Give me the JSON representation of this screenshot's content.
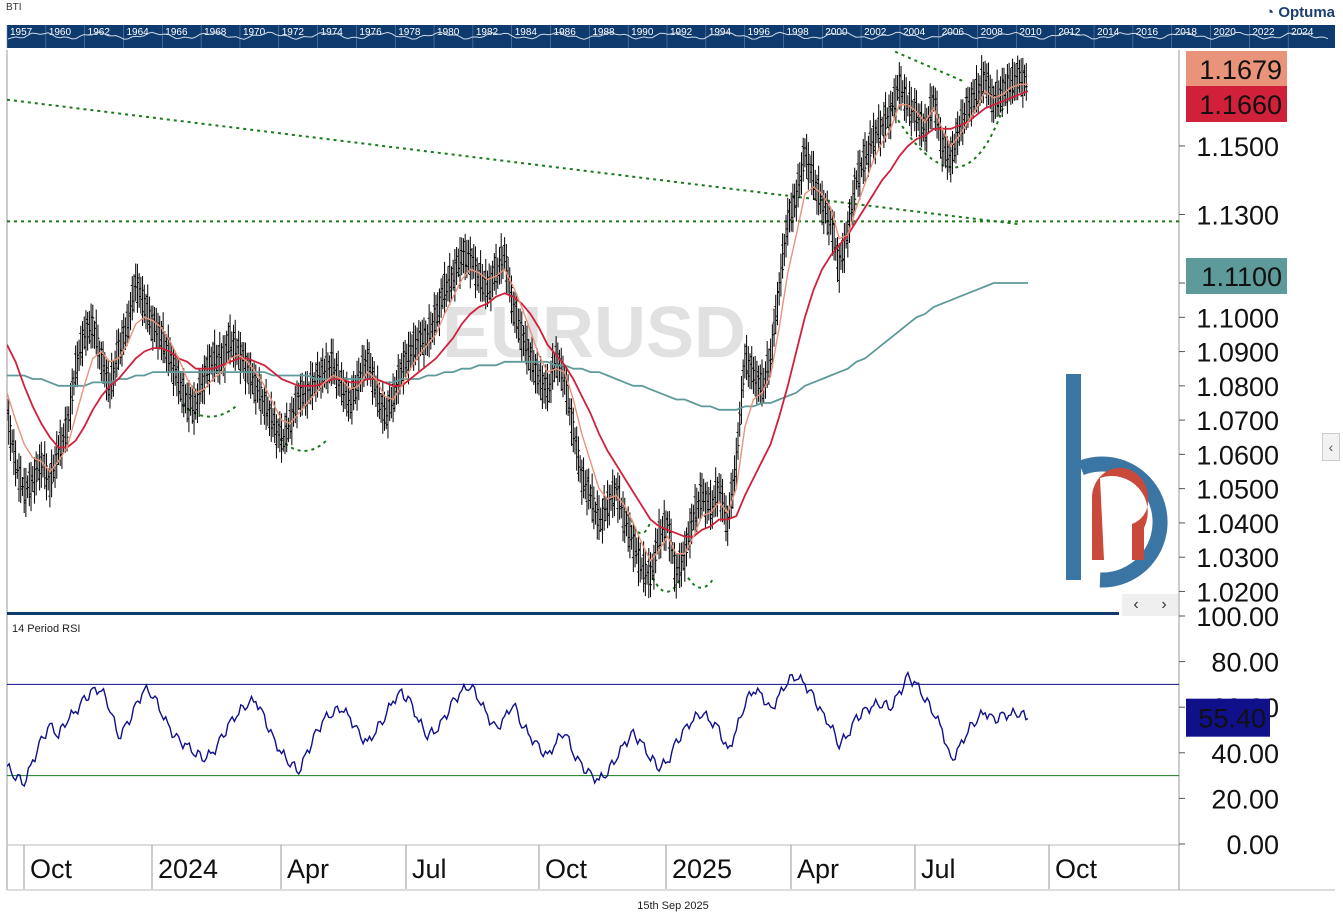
{
  "ticker_label": "BTI",
  "brand": "Optuma",
  "watermark": "EURUSD",
  "date_footer": "15th Sep 2025",
  "rsi_title": "14 Period RSI",
  "nav": {
    "prev": "‹",
    "next": "›"
  },
  "side_toggle": "‹",
  "colors": {
    "price": "#000000",
    "ma_fast": "#e8937a",
    "ma_mid": "#d0203a",
    "ma_slow": "#5f9a9a",
    "trend": "#1a7a1a",
    "rsi": "#10108a",
    "overview_bg": "#0e3a6e"
  },
  "overview_years": [
    "1957",
    "1960",
    "1962",
    "1964",
    "1966",
    "1968",
    "1970",
    "1972",
    "1974",
    "1976",
    "1978",
    "1980",
    "1982",
    "1984",
    "1986",
    "1988",
    "1990",
    "1992",
    "1994",
    "1996",
    "1998",
    "2000",
    "2002",
    "2004",
    "2006",
    "2008",
    "2010",
    "2012",
    "2014",
    "2016",
    "2018",
    "2020",
    "2022",
    "2024"
  ],
  "chart_data": [
    {
      "type": "line",
      "ticks_y": [
        "1.1500",
        "1.1300",
        "1.1100",
        "1.1000",
        "1.0900",
        "1.0800",
        "1.0700",
        "1.0600",
        "1.0500",
        "1.0400",
        "1.0300",
        "1.0200"
      ],
      "ticks_x": [
        "Oct",
        "2024",
        "Apr",
        "Jul",
        "Oct",
        "2025",
        "Apr",
        "Jul",
        "Oct"
      ],
      "ylim": [
        1.014,
        1.178
      ],
      "xlim": [
        0,
        800
      ],
      "markers": [
        {
          "label": "1.1679",
          "value": 1.1679,
          "color": "#e8937a"
        },
        {
          "label": "1.1660",
          "value": 1.166,
          "color": "#d0203a"
        },
        {
          "label": "1.1100",
          "value": 1.11,
          "color": "#5f9a9a"
        }
      ],
      "series": [
        {
          "values": [
            1.072,
            1.057,
            1.049,
            1.052,
            1.058,
            1.052,
            1.061,
            1.067,
            1.085,
            1.095,
            1.098,
            1.088,
            1.079,
            1.09,
            1.097,
            1.11,
            1.104,
            1.098,
            1.094,
            1.088,
            1.081,
            1.075,
            1.074,
            1.083,
            1.088,
            1.087,
            1.093,
            1.09,
            1.085,
            1.08,
            1.075,
            1.069,
            1.064,
            1.069,
            1.077,
            1.078,
            1.082,
            1.084,
            1.086,
            1.08,
            1.075,
            1.082,
            1.088,
            1.079,
            1.071,
            1.076,
            1.085,
            1.09,
            1.093,
            1.094,
            1.1,
            1.108,
            1.112,
            1.118,
            1.117,
            1.112,
            1.108,
            1.113,
            1.118,
            1.103,
            1.095,
            1.088,
            1.082,
            1.078,
            1.088,
            1.082,
            1.067,
            1.053,
            1.048,
            1.04,
            1.045,
            1.05,
            1.041,
            1.034,
            1.027,
            1.024,
            1.036,
            1.04,
            1.025,
            1.031,
            1.042,
            1.048,
            1.044,
            1.05,
            1.04,
            1.058,
            1.088,
            1.083,
            1.079,
            1.088,
            1.109,
            1.128,
            1.135,
            1.148,
            1.14,
            1.133,
            1.128,
            1.115,
            1.125,
            1.14,
            1.146,
            1.152,
            1.156,
            1.16,
            1.168,
            1.162,
            1.159,
            1.154,
            1.164,
            1.15,
            1.146,
            1.155,
            1.161,
            1.165,
            1.17,
            1.163,
            1.166,
            1.168,
            1.17,
            1.168
          ]
        },
        {
          "values": [
            1.078,
            1.07,
            1.063,
            1.059,
            1.058,
            1.055,
            1.058,
            1.062,
            1.071,
            1.08,
            1.088,
            1.09,
            1.087,
            1.088,
            1.092,
            1.098,
            1.1,
            1.099,
            1.097,
            1.093,
            1.088,
            1.082,
            1.078,
            1.079,
            1.082,
            1.084,
            1.088,
            1.089,
            1.087,
            1.084,
            1.08,
            1.075,
            1.07,
            1.069,
            1.072,
            1.075,
            1.078,
            1.081,
            1.083,
            1.082,
            1.079,
            1.08,
            1.084,
            1.082,
            1.077,
            1.076,
            1.08,
            1.085,
            1.089,
            1.092,
            1.095,
            1.101,
            1.106,
            1.111,
            1.114,
            1.113,
            1.111,
            1.112,
            1.114,
            1.109,
            1.103,
            1.096,
            1.089,
            1.084,
            1.085,
            1.084,
            1.076,
            1.066,
            1.058,
            1.05,
            1.047,
            1.048,
            1.045,
            1.04,
            1.034,
            1.029,
            1.032,
            1.036,
            1.031,
            1.031,
            1.036,
            1.042,
            1.043,
            1.046,
            1.043,
            1.05,
            1.068,
            1.076,
            1.078,
            1.083,
            1.097,
            1.113,
            1.124,
            1.136,
            1.138,
            1.136,
            1.132,
            1.123,
            1.124,
            1.132,
            1.139,
            1.146,
            1.151,
            1.155,
            1.162,
            1.162,
            1.16,
            1.157,
            1.161,
            1.155,
            1.15,
            1.153,
            1.157,
            1.161,
            1.166,
            1.164,
            1.165,
            1.167,
            1.168,
            1.168
          ]
        },
        {
          "values": [
            1.092,
            1.087,
            1.08,
            1.074,
            1.069,
            1.065,
            1.062,
            1.062,
            1.064,
            1.068,
            1.073,
            1.077,
            1.08,
            1.082,
            1.085,
            1.088,
            1.09,
            1.091,
            1.091,
            1.09,
            1.088,
            1.087,
            1.085,
            1.085,
            1.085,
            1.086,
            1.087,
            1.088,
            1.088,
            1.087,
            1.086,
            1.084,
            1.082,
            1.081,
            1.08,
            1.08,
            1.08,
            1.081,
            1.082,
            1.082,
            1.081,
            1.081,
            1.082,
            1.082,
            1.081,
            1.08,
            1.08,
            1.082,
            1.084,
            1.086,
            1.088,
            1.091,
            1.094,
            1.098,
            1.101,
            1.103,
            1.104,
            1.106,
            1.107,
            1.106,
            1.104,
            1.101,
            1.097,
            1.092,
            1.089,
            1.086,
            1.082,
            1.077,
            1.072,
            1.066,
            1.061,
            1.057,
            1.053,
            1.049,
            1.045,
            1.041,
            1.039,
            1.038,
            1.037,
            1.036,
            1.036,
            1.038,
            1.039,
            1.041,
            1.041,
            1.042,
            1.048,
            1.053,
            1.058,
            1.063,
            1.071,
            1.08,
            1.09,
            1.1,
            1.108,
            1.114,
            1.118,
            1.121,
            1.124,
            1.128,
            1.132,
            1.136,
            1.14,
            1.143,
            1.147,
            1.15,
            1.152,
            1.153,
            1.155,
            1.155,
            1.155,
            1.156,
            1.157,
            1.159,
            1.161,
            1.162,
            1.163,
            1.164,
            1.165,
            1.166
          ]
        },
        {
          "values": [
            1.083,
            1.083,
            1.083,
            1.082,
            1.082,
            1.081,
            1.08,
            1.08,
            1.08,
            1.08,
            1.081,
            1.081,
            1.081,
            1.082,
            1.082,
            1.083,
            1.083,
            1.084,
            1.084,
            1.084,
            1.084,
            1.084,
            1.084,
            1.084,
            1.084,
            1.084,
            1.084,
            1.084,
            1.084,
            1.084,
            1.084,
            1.083,
            1.083,
            1.083,
            1.083,
            1.083,
            1.082,
            1.082,
            1.082,
            1.082,
            1.082,
            1.082,
            1.082,
            1.082,
            1.081,
            1.081,
            1.082,
            1.082,
            1.082,
            1.083,
            1.083,
            1.084,
            1.084,
            1.085,
            1.085,
            1.086,
            1.086,
            1.086,
            1.087,
            1.087,
            1.087,
            1.087,
            1.087,
            1.087,
            1.086,
            1.086,
            1.085,
            1.085,
            1.084,
            1.084,
            1.083,
            1.082,
            1.081,
            1.08,
            1.08,
            1.079,
            1.078,
            1.077,
            1.076,
            1.076,
            1.075,
            1.074,
            1.074,
            1.073,
            1.073,
            1.073,
            1.074,
            1.074,
            1.075,
            1.075,
            1.076,
            1.077,
            1.078,
            1.08,
            1.081,
            1.082,
            1.083,
            1.084,
            1.085,
            1.087,
            1.088,
            1.09,
            1.092,
            1.094,
            1.096,
            1.098,
            1.1,
            1.101,
            1.103,
            1.104,
            1.105,
            1.106,
            1.107,
            1.108,
            1.109,
            1.11,
            1.11,
            1.11,
            1.11,
            1.11
          ]
        }
      ]
    },
    {
      "type": "line",
      "ticks_y": [
        "100.00",
        "80.00",
        "60.00",
        "40.00",
        "20.00",
        "0.00"
      ],
      "ylim": [
        0,
        100
      ],
      "levels": [
        70,
        30
      ],
      "markers": [
        {
          "label": "55.40",
          "value": 55.4,
          "color": "#10108a"
        }
      ],
      "series": [
        {
          "values": [
            34,
            30,
            27,
            36,
            45,
            52,
            48,
            55,
            58,
            63,
            67,
            68,
            60,
            47,
            52,
            60,
            68,
            66,
            58,
            50,
            45,
            43,
            40,
            38,
            40,
            46,
            53,
            58,
            62,
            63,
            55,
            46,
            40,
            36,
            32,
            40,
            48,
            55,
            58,
            60,
            55,
            48,
            44,
            50,
            56,
            63,
            66,
            62,
            54,
            48,
            50,
            55,
            62,
            67,
            70,
            64,
            56,
            50,
            55,
            62,
            53,
            47,
            42,
            38,
            45,
            50,
            40,
            34,
            30,
            28,
            32,
            38,
            44,
            48,
            44,
            38,
            34,
            36,
            44,
            50,
            55,
            58,
            54,
            50,
            40,
            50,
            62,
            68,
            65,
            58,
            65,
            72,
            74,
            70,
            64,
            57,
            52,
            44,
            48,
            55,
            58,
            61,
            62,
            60,
            66,
            73,
            70,
            64,
            58,
            50,
            36,
            42,
            50,
            55,
            58,
            54,
            56,
            57,
            58,
            55
          ]
        }
      ]
    }
  ]
}
